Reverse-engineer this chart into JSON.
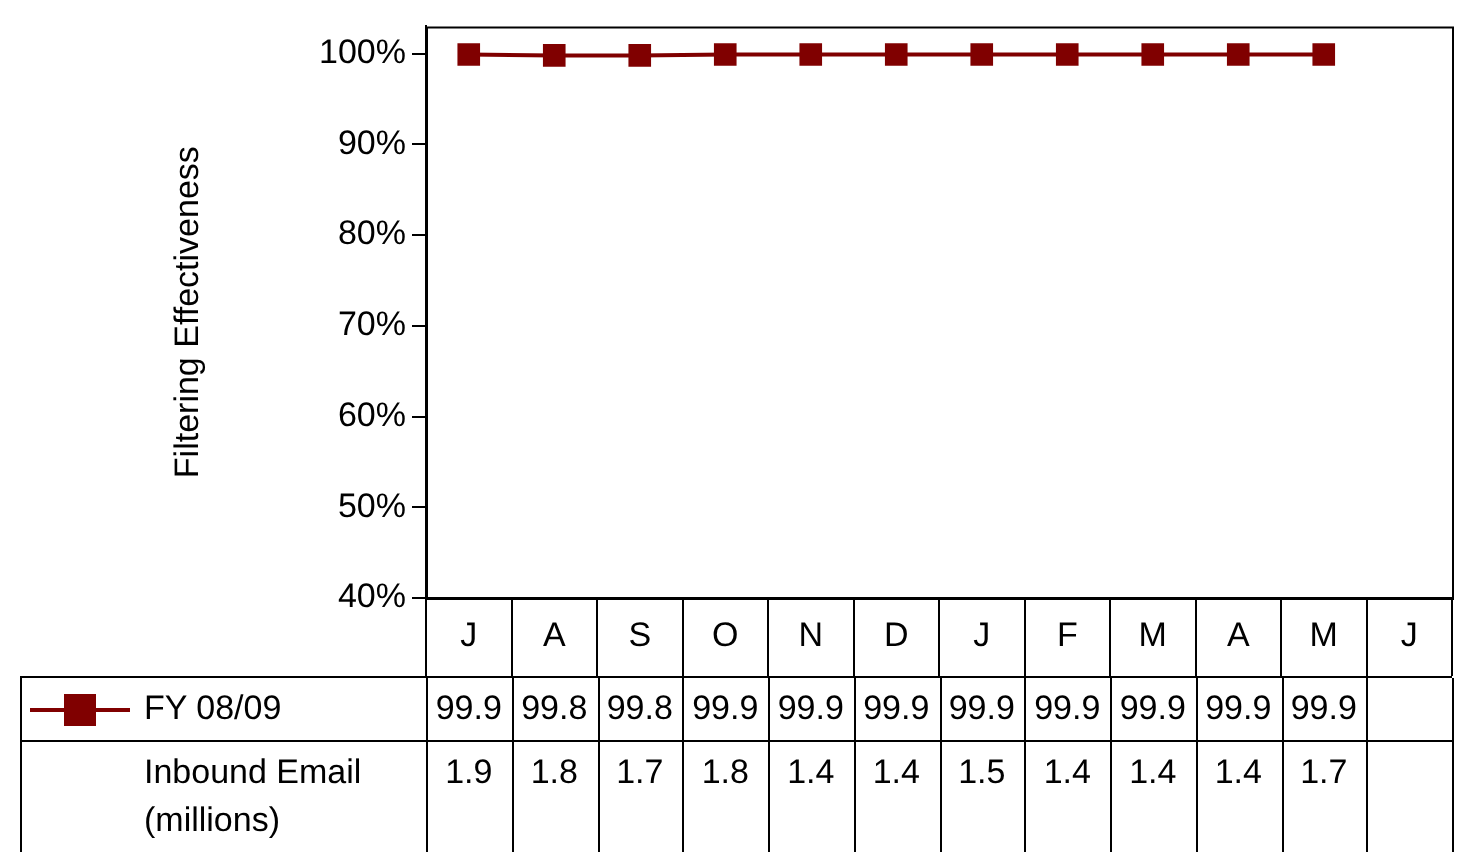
{
  "chart_data": {
    "type": "line",
    "ylabel": "Filtering Effectiveness",
    "categories": [
      "J",
      "A",
      "S",
      "O",
      "N",
      "D",
      "J",
      "F",
      "M",
      "A",
      "M",
      "J"
    ],
    "series": [
      {
        "name": "FY 08/09",
        "color": "#800000",
        "values": [
          99.9,
          99.8,
          99.8,
          99.9,
          99.9,
          99.9,
          99.9,
          99.9,
          99.9,
          99.9,
          99.9,
          null
        ]
      }
    ],
    "annotations": [
      "Inbound Email (millions)",
      "1.9",
      "1.8",
      "1.7",
      "1.8",
      "1.4",
      "1.4",
      "1.5",
      "1.4",
      "1.4",
      "1.4",
      "1.7"
    ],
    "ylim": [
      40,
      103
    ],
    "yticks": [
      {
        "value": 40,
        "label": "40%"
      },
      {
        "value": 50,
        "label": "50%"
      },
      {
        "value": 60,
        "label": "60%"
      },
      {
        "value": 70,
        "label": "70%"
      },
      {
        "value": 80,
        "label": "80%"
      },
      {
        "value": 90,
        "label": "90%"
      },
      {
        "value": 100,
        "label": "100%"
      }
    ],
    "grid": false,
    "legend": "bottom",
    "marker": "square",
    "line_style": "solid",
    "data_labels": true
  }
}
